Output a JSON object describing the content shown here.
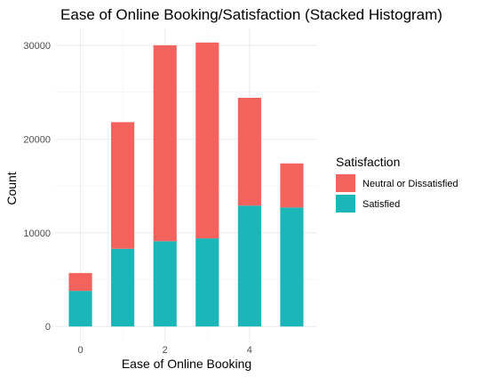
{
  "chart_data": {
    "type": "bar",
    "stacked": true,
    "title": "Ease of Online Booking/Satisfaction (Stacked Histogram)",
    "xlabel": "Ease of Online Booking",
    "ylabel": "Count",
    "x": [
      0,
      1,
      2,
      3,
      4,
      5
    ],
    "x_tick_labels": [
      "0",
      "2",
      "4"
    ],
    "x_ticks": [
      0,
      2,
      4
    ],
    "y_ticks": [
      0,
      10000,
      20000,
      30000
    ],
    "xlim": [
      -0.6,
      5.6
    ],
    "ylim": [
      -1500,
      31800
    ],
    "grid": true,
    "legend": {
      "title": "Satisfaction",
      "position": "right",
      "entries": [
        "Neutral or Dissatisfied",
        "Satisfied"
      ]
    },
    "series": [
      {
        "name": "Satisfied",
        "color": "#1bb6b7",
        "values": [
          3800,
          8300,
          9100,
          9400,
          12900,
          12700
        ]
      },
      {
        "name": "Neutral or Dissatisfied",
        "color": "#f4625e",
        "values": [
          1900,
          13500,
          20900,
          20900,
          11500,
          4700
        ]
      }
    ]
  }
}
